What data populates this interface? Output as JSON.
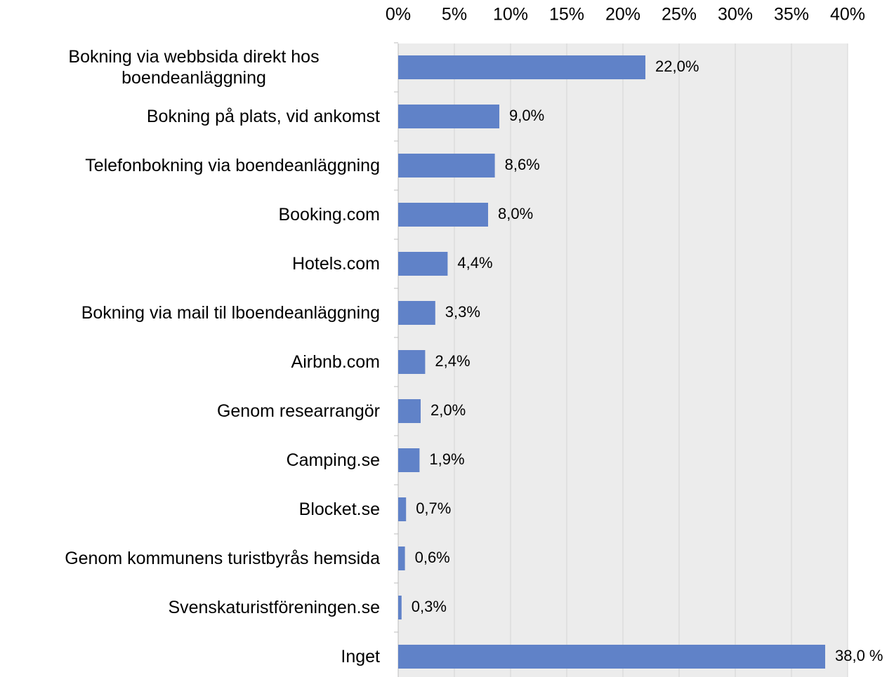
{
  "chart_data": {
    "type": "bar",
    "orientation": "horizontal",
    "categories": [
      "Bokning via webbsida direkt hos boendeanläggning",
      "Bokning på plats, vid ankomst",
      "Telefonbokning via boendeanläggning",
      "Booking.com",
      "Hotels.com",
      "Bokning via mail til lboendeanläggning",
      "Airbnb.com",
      "Genom researrangör",
      "Camping.se",
      "Blocket.se",
      "Genom kommunens turistbyrås hemsida",
      "Svenskaturistföreningen.se",
      "Inget"
    ],
    "values": [
      22.0,
      9.0,
      8.6,
      8.0,
      4.4,
      3.3,
      2.4,
      2.0,
      1.9,
      0.7,
      0.6,
      0.3,
      38.0
    ],
    "value_labels": [
      "22,0%",
      "9,0%",
      "8,6%",
      "8,0%",
      "4,4%",
      "3,3%",
      "2,4%",
      "2,0%",
      "1,9%",
      "0,7%",
      "0,6%",
      "0,3%",
      "38,0 %"
    ],
    "color": "#6082c8",
    "xlim": [
      0,
      40
    ],
    "xticks": [
      {
        "value": 0,
        "label": "0%"
      },
      {
        "value": 5,
        "label": "5%"
      },
      {
        "value": 10,
        "label": "10%"
      },
      {
        "value": 15,
        "label": "15%"
      },
      {
        "value": 20,
        "label": "20%"
      },
      {
        "value": 25,
        "label": "25%"
      },
      {
        "value": 30,
        "label": "30%"
      },
      {
        "value": 35,
        "label": "35%"
      },
      {
        "value": 40,
        "label": "40%"
      }
    ],
    "grid": true
  }
}
